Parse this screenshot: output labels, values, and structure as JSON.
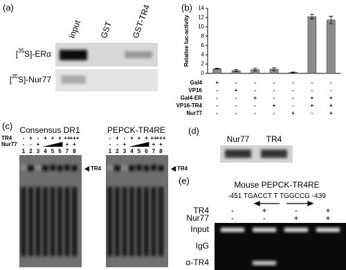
{
  "panel_a": {
    "label": "(a)",
    "lanes": [
      "Input",
      "GST",
      "GST-TR4"
    ],
    "rows": [
      {
        "prefix": "[",
        "isotope": "35",
        "name": "S]-ERα"
      },
      {
        "prefix": "[",
        "isotope": "35",
        "name": "S]-Nur77"
      }
    ]
  },
  "chart_data": {
    "type": "bar",
    "panel_label": "(b)",
    "y_label": "Relative luc-activity",
    "values": [
      1.0,
      0.6,
      0.8,
      0.9,
      0.2,
      12.2,
      11.5
    ],
    "errors": [
      0.1,
      0.2,
      0.3,
      0.3,
      0.1,
      0.5,
      0.8
    ],
    "color": "#8c8c8c",
    "ylim": [
      0,
      14
    ],
    "yticks": [
      0,
      2,
      4,
      6,
      8,
      10,
      12,
      14
    ],
    "conditions": [
      {
        "name": "Gal4",
        "signs": [
          "+",
          "-",
          "-",
          "-",
          "-",
          "-",
          "-"
        ]
      },
      {
        "name": "VP16",
        "signs": [
          "-",
          "+",
          "-",
          "-",
          "-",
          "-",
          "-"
        ]
      },
      {
        "name": "Gal4-ER",
        "signs": [
          "-",
          "-",
          "+",
          "-",
          "-",
          "+",
          "+"
        ]
      },
      {
        "name": "VP16-TR4",
        "signs": [
          "-",
          "-",
          "-",
          "+",
          "-",
          "+",
          "+"
        ]
      },
      {
        "name": "Nur77",
        "signs": [
          "-",
          "-",
          "-",
          "-",
          "+",
          "-",
          "+"
        ]
      }
    ]
  },
  "panel_c": {
    "label": "(c)",
    "row_labels": [
      "TR4",
      "Nur77"
    ],
    "gels": [
      {
        "title": "Consensus DR1",
        "tr4": [
          "-",
          "+",
          "-",
          "+",
          "+",
          "+",
          "++",
          "+++"
        ],
        "nur77": [
          "-",
          "-",
          "+",
          null,
          null,
          null,
          "+",
          "+"
        ],
        "lanes": [
          1,
          2,
          3,
          4,
          5,
          6,
          7,
          8
        ],
        "marker": "TR4"
      },
      {
        "title": "PEPCK-TR4RE",
        "tr4": [
          "-",
          "+",
          "-",
          "+",
          "+",
          "+",
          "++",
          "+++"
        ],
        "nur77": [
          "-",
          "-",
          "+",
          null,
          null,
          null,
          "+",
          "+"
        ],
        "lanes": [
          1,
          2,
          3,
          4,
          5,
          6,
          7,
          8
        ],
        "marker": "TR4"
      }
    ]
  },
  "panel_d": {
    "label": "(d)",
    "lanes": [
      "Nur77",
      "TR4"
    ]
  },
  "panel_e": {
    "label": "(e)",
    "title": "Mouse PEPCK-TR4RE",
    "sequence": {
      "start": "-451",
      "half1": "TGACCT",
      "spacer": "T",
      "half2": "TGGCCG",
      "end": "-439"
    },
    "conditions": [
      {
        "name": "TR4",
        "signs": [
          "-",
          "+",
          "-",
          "+"
        ]
      },
      {
        "name": "Nur77",
        "signs": [
          "-",
          "-",
          "+",
          "+"
        ]
      }
    ],
    "rows": [
      "Input",
      "IgG",
      "α-TR4"
    ]
  }
}
